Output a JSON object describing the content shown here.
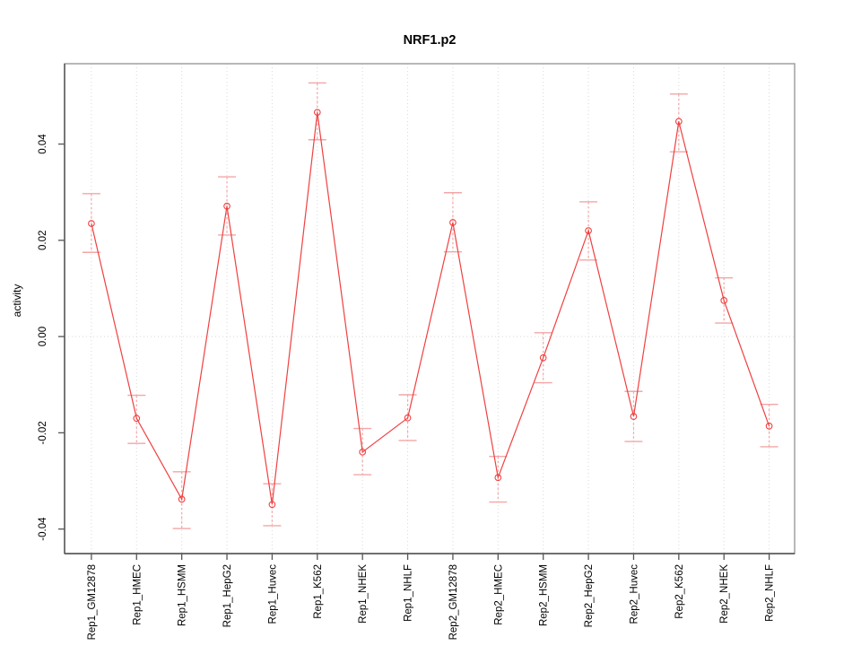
{
  "chart_data": {
    "type": "line",
    "title": "NRF1.p2",
    "ylabel": "activity",
    "xlabel": "",
    "categories": [
      "Rep1_GM12878",
      "Rep1_HMEC",
      "Rep1_HSMM",
      "Rep1_HepG2",
      "Rep1_Huvec",
      "Rep1_K562",
      "Rep1_NHEK",
      "Rep1_NHLF",
      "Rep2_GM12878",
      "Rep2_HMEC",
      "Rep2_HSMM",
      "Rep2_HepG2",
      "Rep2_Huvec",
      "Rep2_K562",
      "Rep2_NHEK",
      "Rep2_NHLF"
    ],
    "series": [
      {
        "name": "activity",
        "values": [
          0.0235,
          -0.017,
          -0.0338,
          0.0271,
          -0.0349,
          0.0466,
          -0.024,
          -0.0169,
          0.0237,
          -0.0293,
          -0.0044,
          0.022,
          -0.0166,
          0.0447,
          0.0075,
          -0.0186
        ],
        "error_low": [
          0.0175,
          -0.0222,
          -0.0399,
          0.0211,
          -0.0393,
          0.0409,
          -0.0287,
          -0.0216,
          0.0176,
          -0.0344,
          -0.0096,
          0.0159,
          -0.0218,
          0.0384,
          0.0028,
          -0.0229
        ],
        "error_high": [
          0.0297,
          -0.0122,
          -0.0281,
          0.0332,
          -0.0306,
          0.0527,
          -0.0191,
          -0.0121,
          0.0299,
          -0.0249,
          0.0008,
          0.028,
          -0.0114,
          0.0504,
          0.0122,
          -0.0141
        ]
      }
    ],
    "yticks": [
      -0.04,
      -0.02,
      0,
      0.02,
      0.04
    ],
    "ytick_labels": [
      "-0.04",
      "-0.02",
      "0.00",
      "0.02",
      "0.04"
    ],
    "ylim": [
      -0.0451,
      0.0567
    ],
    "grid": {
      "vertical_dotted_per_category": true,
      "horizontal_dotted_at_zero": true
    },
    "legend_position": "none",
    "point_style": "open-circle",
    "colors": {
      "line": "#f04040",
      "error_bar": "#f4a6a6",
      "grid": "#d9d9d9",
      "box": "#9a9a9a",
      "axis": "#4d4d4d",
      "tick": "#555555",
      "text": "#000000",
      "background": "#ffffff"
    }
  }
}
